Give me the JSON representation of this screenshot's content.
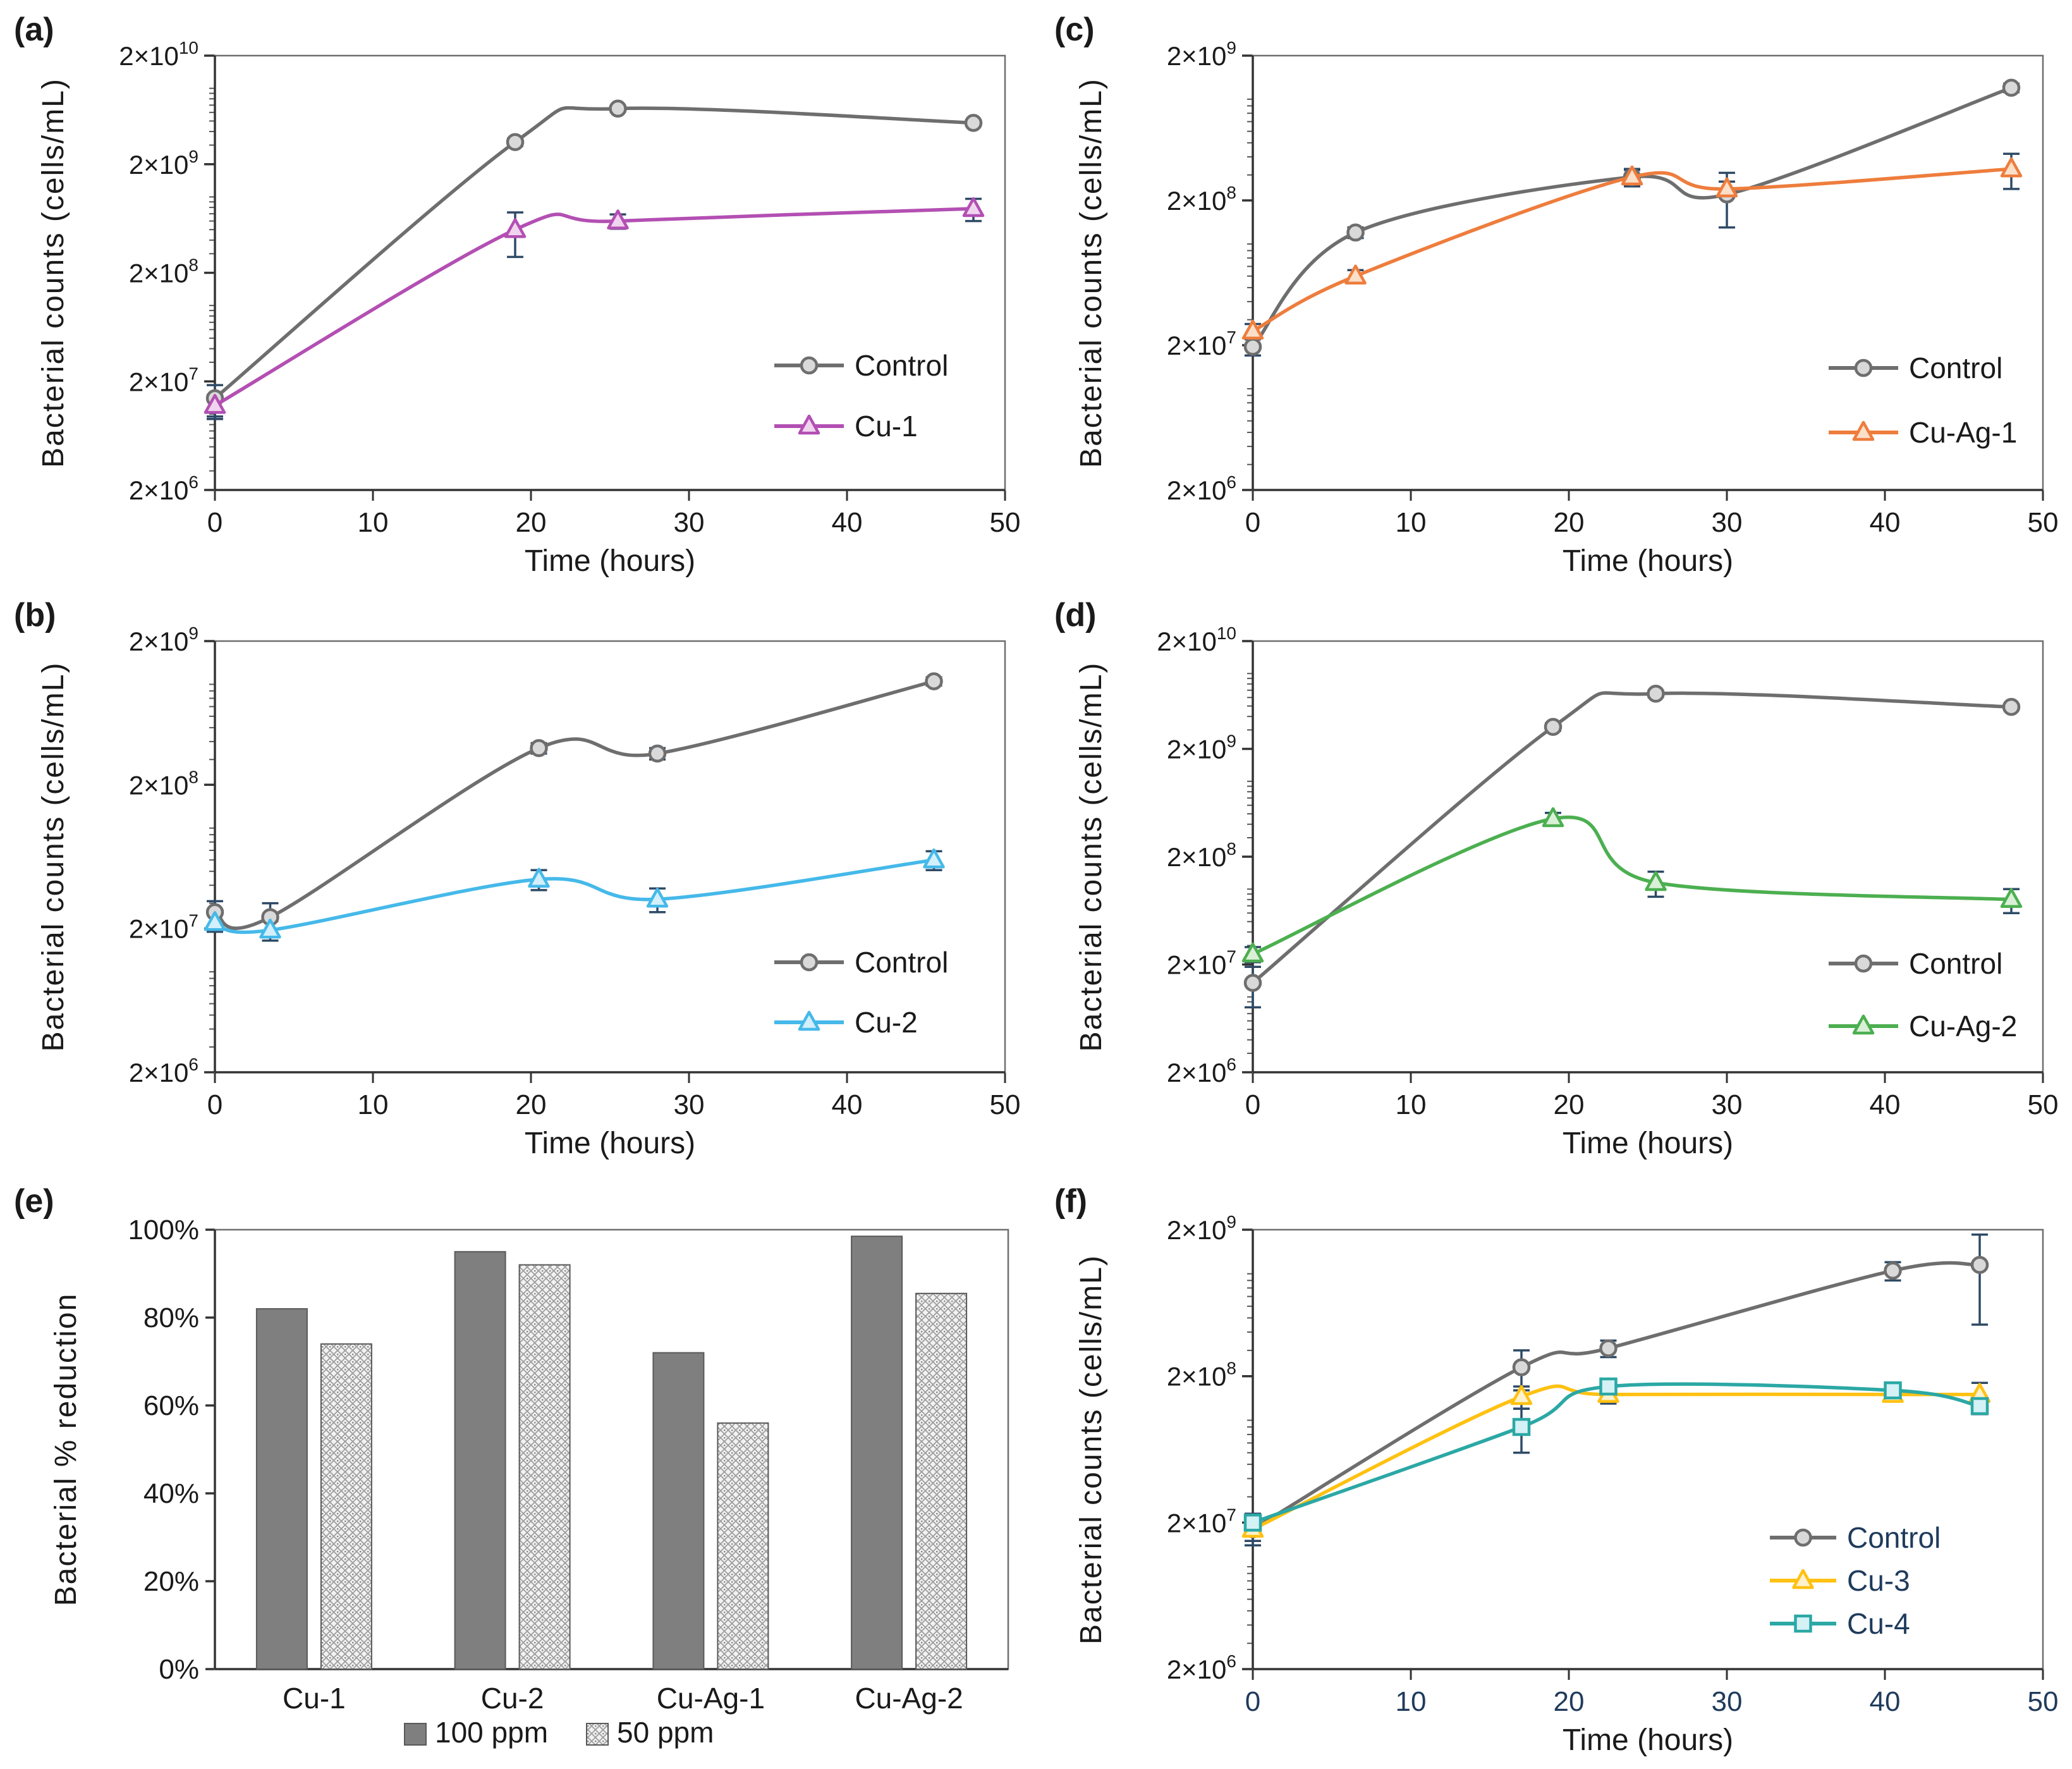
{
  "figure": {
    "background": "#ffffff",
    "text_color": "#1a1a1a",
    "axis_color": "#333333",
    "box_color": "#6e6e6e",
    "error_bar_color": "#2e4a66",
    "navy_text_color": "#1f3b5c",
    "y_tick_mantissa": "2×10"
  },
  "chart_data": [
    {
      "id": "a",
      "type": "line",
      "panel_label": "(a)",
      "xlabel": "Time (hours)",
      "ylabel": "Bacterial counts (cells/mL)",
      "x_max": 50,
      "x_ticks": [
        0,
        10,
        20,
        30,
        40,
        50
      ],
      "y_scale": "log",
      "y_min_exp": 6,
      "y_max_exp": 10,
      "series": [
        {
          "name": "Control",
          "marker": "circle",
          "color": "#6e6e6e",
          "fill": "#d9d9d9",
          "x": [
            0,
            19,
            25.5,
            48
          ],
          "y": [
            14000000.0,
            3200000000.0,
            6500000000.0,
            4800000000.0
          ],
          "err": [
            4500000.0,
            250000000.0,
            400000000.0,
            300000000.0
          ]
        },
        {
          "name": "Cu-1",
          "marker": "triangle",
          "color": "#b34fb3",
          "fill": "#f0d4ef",
          "x": [
            0,
            19,
            25.5,
            48
          ],
          "y": [
            12000000.0,
            500000000.0,
            600000000.0,
            780000000.0
          ],
          "err": [
            3000000.0,
            220000000.0,
            90000000.0,
            180000000.0
          ]
        }
      ]
    },
    {
      "id": "b",
      "type": "line",
      "panel_label": "(b)",
      "xlabel": "Time (hours)",
      "ylabel": "Bacterial counts (cells/mL)",
      "x_max": 50,
      "x_ticks": [
        0,
        10,
        20,
        30,
        40,
        50
      ],
      "y_scale": "log",
      "y_min_exp": 6,
      "y_max_exp": 9,
      "series": [
        {
          "name": "Control",
          "marker": "circle",
          "color": "#6e6e6e",
          "fill": "#d9d9d9",
          "x": [
            0,
            3.5,
            20.5,
            28,
            45.5
          ],
          "y": [
            26000000.0,
            24000000.0,
            360000000.0,
            330000000.0,
            1050000000.0
          ],
          "err": [
            5000000.0,
            6000000.0,
            30000000.0,
            30000000.0,
            70000000.0
          ]
        },
        {
          "name": "Cu-2",
          "marker": "triangle",
          "color": "#45b9e9",
          "fill": "#d2effb",
          "x": [
            0,
            3.5,
            20.5,
            28,
            45.5
          ],
          "y": [
            22000000.0,
            19500000.0,
            44000000.0,
            32000000.0,
            60000000.0
          ],
          "err": [
            3000000.0,
            3000000.0,
            7000000.0,
            6000000.0,
            9000000.0
          ]
        }
      ]
    },
    {
      "id": "c",
      "type": "line",
      "panel_label": "(c)",
      "xlabel": "Time (hours)",
      "ylabel": "Bacterial counts (cells/mL)",
      "x_max": 50,
      "x_ticks": [
        0,
        10,
        20,
        30,
        40,
        50
      ],
      "y_scale": "log",
      "y_min_exp": 6,
      "y_max_exp": 9,
      "series": [
        {
          "name": "Control",
          "marker": "circle",
          "color": "#6e6e6e",
          "fill": "#d9d9d9",
          "x": [
            0,
            6.5,
            24,
            30,
            48
          ],
          "y": [
            19500000.0,
            120000000.0,
            290000000.0,
            220000000.0,
            1200000000.0
          ],
          "err": [
            2500000.0,
            10000000.0,
            40000000.0,
            90000000.0,
            80000000.0
          ]
        },
        {
          "name": "Cu-Ag-1",
          "marker": "triangle",
          "color": "#ee7d3d",
          "fill": "#fbdfc9",
          "x": [
            0,
            6.5,
            24,
            30,
            48
          ],
          "y": [
            25000000.0,
            60000000.0,
            290000000.0,
            240000000.0,
            330000000.0
          ],
          "err": [
            3000000.0,
            6000000.0,
            35000000.0,
            30000000.0,
            90000000.0
          ]
        }
      ]
    },
    {
      "id": "d",
      "type": "line",
      "panel_label": "(d)",
      "xlabel": "Time (hours)",
      "ylabel": "Bacterial counts (cells/mL)",
      "x_max": 50,
      "x_ticks": [
        0,
        10,
        20,
        30,
        40,
        50
      ],
      "y_scale": "log",
      "y_min_exp": 6,
      "y_max_exp": 10,
      "series": [
        {
          "name": "Control",
          "marker": "circle",
          "color": "#6e6e6e",
          "fill": "#d9d9d9",
          "x": [
            0,
            19,
            25.5,
            48
          ],
          "y": [
            13500000.0,
            3200000000.0,
            6500000000.0,
            4900000000.0
          ],
          "err": [
            5500000.0,
            250000000.0,
            450000000.0,
            300000000.0
          ]
        },
        {
          "name": "Cu-Ag-2",
          "marker": "triangle",
          "color": "#4caf50",
          "fill": "#d9f0d6",
          "x": [
            0,
            19,
            25.5,
            48
          ],
          "y": [
            25000000.0,
            450000000.0,
            115000000.0,
            80000000.0
          ],
          "err": [
            4000000.0,
            60000000.0,
            30000000.0,
            20000000.0
          ]
        }
      ]
    },
    {
      "id": "e",
      "type": "bar",
      "panel_label": "(e)",
      "xlabel": "",
      "ylabel": "Bacterial % reduction",
      "categories": [
        "Cu-1",
        "Cu-2",
        "Cu-Ag-1",
        "Cu-Ag-2"
      ],
      "y_ticks": [
        0,
        20,
        40,
        60,
        80,
        100
      ],
      "y_tick_labels": [
        "0%",
        "20%",
        "40%",
        "60%",
        "80%",
        "100%"
      ],
      "ylim": [
        0,
        100
      ],
      "series": [
        {
          "name": "100 ppm",
          "style": "solid",
          "color": "#7f7f7f",
          "values": [
            82,
            95,
            72,
            98.5
          ]
        },
        {
          "name": "50 ppm",
          "style": "pattern",
          "color": "#bfbfbf",
          "values": [
            74,
            92,
            56,
            85.5
          ]
        }
      ]
    },
    {
      "id": "f",
      "type": "line",
      "panel_label": "(f)",
      "xlabel": "Time (hours)",
      "ylabel": "Bacterial counts (cells/mL)",
      "x_max": 50,
      "x_ticks": [
        0,
        10,
        20,
        30,
        40,
        50
      ],
      "x_tick_color": "#1f3b5c",
      "legend_text_color": "#1f3b5c",
      "y_scale": "log",
      "y_min_exp": 6,
      "y_max_exp": 9,
      "series": [
        {
          "name": "Control",
          "marker": "circle",
          "color": "#6e6e6e",
          "fill": "#d9d9d9",
          "x": [
            0,
            17,
            22.5,
            40.5,
            46
          ],
          "y": [
            18000000.0,
            230000000.0,
            310000000.0,
            1050000000.0,
            1150000000.0
          ],
          "err": [
            4000000.0,
            70000000.0,
            40000000.0,
            150000000.0,
            700000000.0
          ]
        },
        {
          "name": "Cu-3",
          "marker": "triangle",
          "color": "#ffc112",
          "fill": "#fdf2cd",
          "x": [
            0,
            17,
            22.5,
            40.5,
            46
          ],
          "y": [
            18000000.0,
            145000000.0,
            150000000.0,
            150000000.0,
            150000000.0
          ],
          "err": [
            3000000.0,
            25000000.0,
            20000000.0,
            12000000.0,
            30000000.0
          ]
        },
        {
          "name": "Cu-4",
          "marker": "square",
          "color": "#2ba8a5",
          "fill": "#d4f1f5",
          "x": [
            0,
            17,
            22.5,
            40.5,
            46
          ],
          "y": [
            20000000.0,
            90000000.0,
            170000000.0,
            160000000.0,
            125000000.0
          ],
          "err": [
            3000000.0,
            30000000.0,
            20000000.0,
            12000000.0,
            15000000.0
          ]
        }
      ]
    }
  ]
}
